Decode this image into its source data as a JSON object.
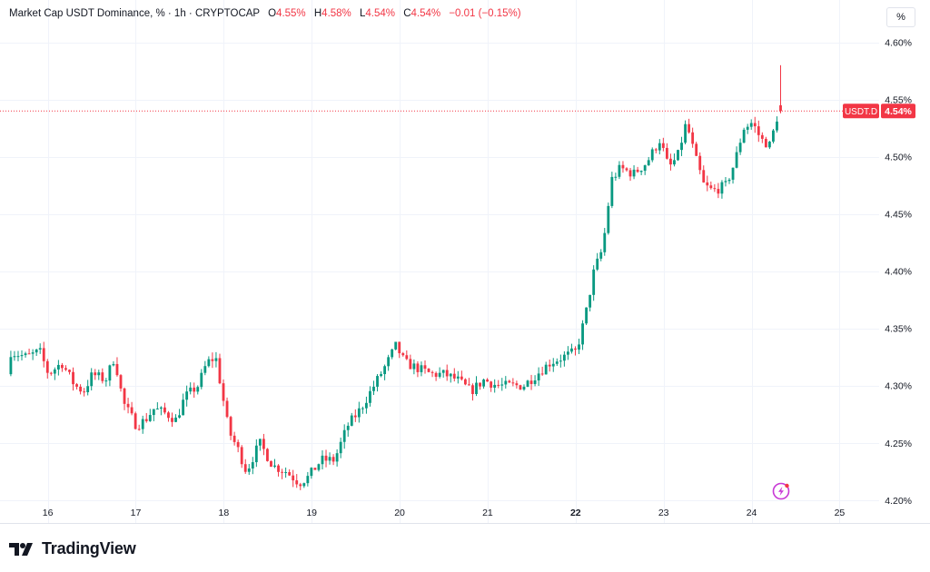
{
  "legend": {
    "symbol_text": "Market Cap USDT Dominance, % · 1h · CRYPTOCAP",
    "o_label": "O",
    "o_value": "4.55%",
    "h_label": "H",
    "h_value": "4.58%",
    "l_label": "L",
    "l_value": "4.54%",
    "c_label": "C",
    "c_value": "4.54%",
    "change": "−0.01 (−0.15%)"
  },
  "scale_button": "%",
  "price_tag": {
    "symbol": "USDT.D",
    "value": "4.54%"
  },
  "brand": "TradingView",
  "icons": {
    "lightning": "lightning-icon",
    "logo": "tradingview-logo-icon"
  },
  "colors": {
    "up": "#089981",
    "down": "#f23645",
    "grid": "#f0f3fa",
    "text": "#131722"
  },
  "chart_data": {
    "type": "candlestick",
    "title": "Market Cap USDT Dominance",
    "interval": "1h",
    "source": "CRYPTOCAP",
    "ylim": [
      4.18,
      4.61
    ],
    "y_ticks": [
      "4.60%",
      "4.55%",
      "4.50%",
      "4.45%",
      "4.40%",
      "4.35%",
      "4.30%",
      "4.25%",
      "4.20%"
    ],
    "y_tick_values": [
      4.6,
      4.55,
      4.5,
      4.45,
      4.4,
      4.35,
      4.3,
      4.25,
      4.2
    ],
    "x_ticks": [
      "16",
      "17",
      "18",
      "19",
      "20",
      "21",
      "22",
      "23",
      "24",
      "25"
    ],
    "x_tick_values": [
      16,
      17,
      18,
      19,
      20,
      21,
      22,
      23,
      24,
      25
    ],
    "bold_x_tick": "22",
    "xlim": [
      15.55,
      25.45
    ],
    "last_price": 4.54,
    "grid": true,
    "anchors": [
      [
        15.55,
        4.28
      ],
      [
        15.6,
        4.33
      ],
      [
        15.8,
        4.325
      ],
      [
        15.95,
        4.33
      ],
      [
        16.05,
        4.31
      ],
      [
        16.2,
        4.32
      ],
      [
        16.35,
        4.3
      ],
      [
        16.45,
        4.295
      ],
      [
        16.55,
        4.31
      ],
      [
        16.7,
        4.305
      ],
      [
        16.8,
        4.325
      ],
      [
        16.9,
        4.285
      ],
      [
        17.05,
        4.265
      ],
      [
        17.15,
        4.27
      ],
      [
        17.25,
        4.28
      ],
      [
        17.4,
        4.275
      ],
      [
        17.5,
        4.27
      ],
      [
        17.6,
        4.29
      ],
      [
        17.75,
        4.3
      ],
      [
        17.85,
        4.32
      ],
      [
        17.95,
        4.325
      ],
      [
        18.1,
        4.26
      ],
      [
        18.2,
        4.245
      ],
      [
        18.3,
        4.225
      ],
      [
        18.45,
        4.25
      ],
      [
        18.6,
        4.23
      ],
      [
        18.75,
        4.225
      ],
      [
        18.9,
        4.215
      ],
      [
        19.0,
        4.22
      ],
      [
        19.15,
        4.235
      ],
      [
        19.3,
        4.235
      ],
      [
        19.45,
        4.265
      ],
      [
        19.6,
        4.28
      ],
      [
        19.75,
        4.3
      ],
      [
        19.9,
        4.32
      ],
      [
        20.0,
        4.335
      ],
      [
        20.1,
        4.32
      ],
      [
        20.25,
        4.315
      ],
      [
        20.4,
        4.31
      ],
      [
        20.55,
        4.31
      ],
      [
        20.7,
        4.305
      ],
      [
        20.85,
        4.295
      ],
      [
        21.0,
        4.305
      ],
      [
        21.15,
        4.3
      ],
      [
        21.3,
        4.3
      ],
      [
        21.45,
        4.3
      ],
      [
        21.6,
        4.31
      ],
      [
        21.75,
        4.32
      ],
      [
        21.9,
        4.325
      ],
      [
        22.05,
        4.33
      ],
      [
        22.15,
        4.36
      ],
      [
        22.25,
        4.4
      ],
      [
        22.35,
        4.42
      ],
      [
        22.45,
        4.48
      ],
      [
        22.55,
        4.49
      ],
      [
        22.7,
        4.485
      ],
      [
        22.85,
        4.495
      ],
      [
        23.0,
        4.515
      ],
      [
        23.1,
        4.49
      ],
      [
        23.2,
        4.5
      ],
      [
        23.3,
        4.53
      ],
      [
        23.4,
        4.5
      ],
      [
        23.5,
        4.475
      ],
      [
        23.6,
        4.47
      ],
      [
        23.75,
        4.475
      ],
      [
        23.85,
        4.495
      ],
      [
        23.95,
        4.525
      ],
      [
        24.05,
        4.53
      ],
      [
        24.15,
        4.515
      ],
      [
        24.25,
        4.51
      ],
      [
        24.35,
        4.54
      ]
    ]
  }
}
